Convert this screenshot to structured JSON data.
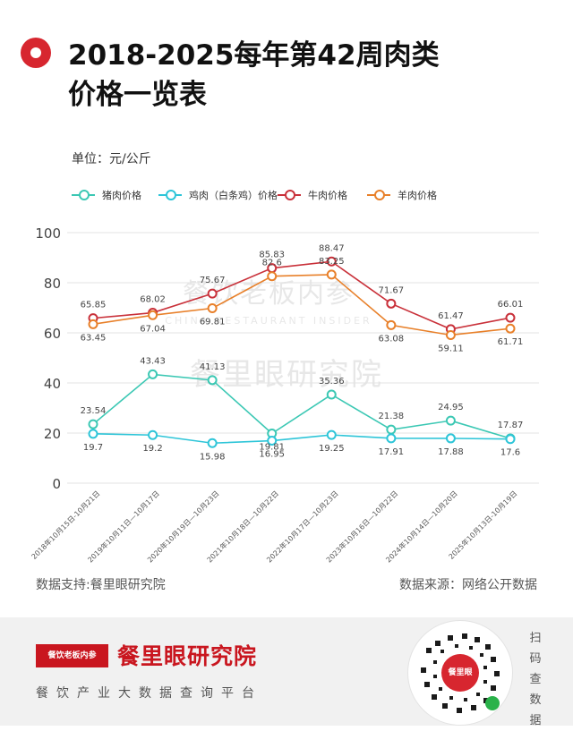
{
  "header": {
    "title_line1": "2018-2025每年第42周肉类",
    "title_line2": "价格一览表"
  },
  "unit_label": "单位：元/公斤",
  "watermark": {
    "line1": "餐饮老板内参",
    "line2": "CHINA RESTAURANT INSIDER",
    "line3": "餐里眼研究院"
  },
  "sources": {
    "support": "数据支持:餐里眼研究院",
    "origin": "数据来源：网络公开数据"
  },
  "footer": {
    "brand_box": "餐饮老板内参",
    "brand_name": "餐里眼研究院",
    "subtitle": "餐饮产业大数据查询平台",
    "qr_center": "餐里眼",
    "scan_text": "扫码查数据"
  },
  "chart_data": {
    "type": "line",
    "categories": [
      "2018年10月15日-10月21日",
      "2019年10月11日—10月17日",
      "2020年10月19日—10月23日",
      "2021年10月18日—10月22日",
      "2022年10月17日—10月23日",
      "2023年10月16日—10月22日",
      "2024年10月14日—10月20日",
      "2025年10月13日-10月19日"
    ],
    "ylim": [
      0,
      100
    ],
    "yticks": [
      0,
      20,
      40,
      60,
      80,
      100
    ],
    "grid": true,
    "legend_position": "top-left",
    "series": [
      {
        "name": "猪肉价格",
        "color": "#3cc8b4",
        "values": [
          23.54,
          43.43,
          41.13,
          19.81,
          35.36,
          21.38,
          24.95,
          17.87
        ]
      },
      {
        "name": "鸡肉（白条鸡）价格",
        "color": "#2ec5d8",
        "values": [
          19.7,
          19.2,
          15.98,
          16.95,
          19.25,
          17.91,
          17.88,
          17.6
        ]
      },
      {
        "name": "牛肉价格",
        "color": "#c9313a",
        "values": [
          65.85,
          68.02,
          75.67,
          85.83,
          88.47,
          71.67,
          61.47,
          66.01
        ]
      },
      {
        "name": "羊肉价格",
        "color": "#e8802a",
        "values": [
          63.45,
          67.04,
          69.81,
          82.6,
          83.25,
          63.08,
          59.11,
          61.71
        ]
      }
    ]
  }
}
